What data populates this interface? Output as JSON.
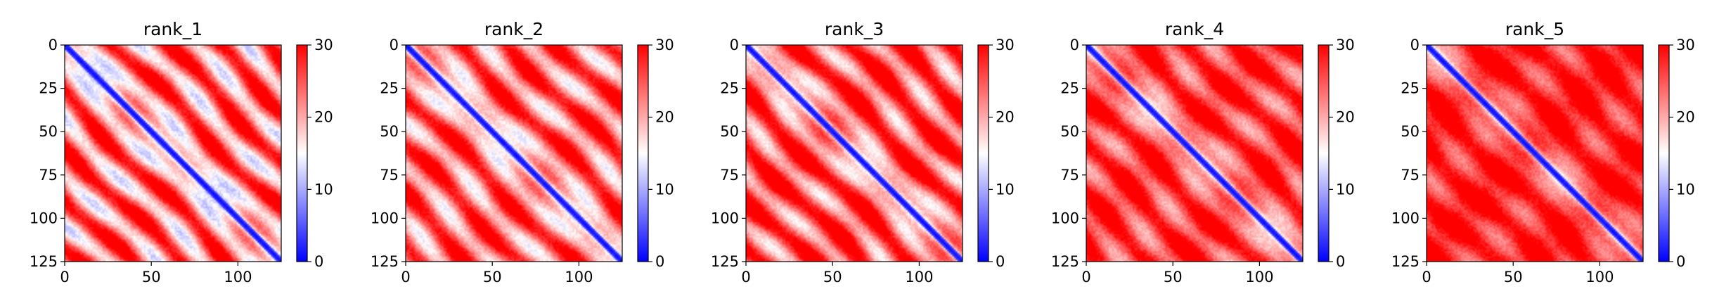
{
  "chart_data": [
    {
      "type": "heatmap",
      "title": "rank_1",
      "xlabel": "",
      "ylabel": "",
      "xticks": [
        0,
        50,
        100
      ],
      "yticks": [
        0,
        25,
        50,
        75,
        100,
        125
      ],
      "xlim": [
        0,
        125
      ],
      "ylim": [
        125,
        0
      ],
      "colorbar": {
        "min": 0,
        "max": 30,
        "ticks": [
          0,
          10,
          20,
          30
        ],
        "colormap": "bwr"
      },
      "grid": false,
      "description": "pairwise matrix with low values along the main diagonal; broad alternating red/blue off-diagonal stripe pattern"
    },
    {
      "type": "heatmap",
      "title": "rank_2",
      "xlabel": "",
      "ylabel": "",
      "xticks": [
        0,
        50,
        100
      ],
      "yticks": [
        0,
        25,
        50,
        75,
        100,
        125
      ],
      "xlim": [
        0,
        125
      ],
      "ylim": [
        125,
        0
      ],
      "colorbar": {
        "min": 0,
        "max": 30,
        "ticks": [
          0,
          10,
          20,
          30
        ],
        "colormap": "bwr"
      },
      "grid": false
    },
    {
      "type": "heatmap",
      "title": "rank_3",
      "xlabel": "",
      "ylabel": "",
      "xticks": [
        0,
        50,
        100
      ],
      "yticks": [
        0,
        25,
        50,
        75,
        100,
        125
      ],
      "xlim": [
        0,
        125
      ],
      "ylim": [
        125,
        0
      ],
      "colorbar": {
        "min": 0,
        "max": 30,
        "ticks": [
          0,
          10,
          20,
          30
        ],
        "colormap": "bwr"
      },
      "grid": false
    },
    {
      "type": "heatmap",
      "title": "rank_4",
      "xlabel": "",
      "ylabel": "",
      "xticks": [
        0,
        50,
        100
      ],
      "yticks": [
        0,
        25,
        50,
        75,
        100,
        125
      ],
      "xlim": [
        0,
        125
      ],
      "ylim": [
        125,
        0
      ],
      "colorbar": {
        "min": 0,
        "max": 30,
        "ticks": [
          0,
          10,
          20,
          30
        ],
        "colormap": "bwr"
      },
      "grid": false
    },
    {
      "type": "heatmap",
      "title": "rank_5",
      "xlabel": "",
      "ylabel": "",
      "xticks": [
        0,
        50,
        100
      ],
      "yticks": [
        0,
        25,
        50,
        75,
        100,
        125
      ],
      "xlim": [
        0,
        125
      ],
      "ylim": [
        125,
        0
      ],
      "colorbar": {
        "min": 0,
        "max": 30,
        "ticks": [
          0,
          10,
          20,
          30
        ],
        "colormap": "bwr"
      },
      "grid": false
    }
  ],
  "colors": {
    "low": "#0000ff",
    "mid": "#ffffff",
    "high": "#ff0000"
  }
}
